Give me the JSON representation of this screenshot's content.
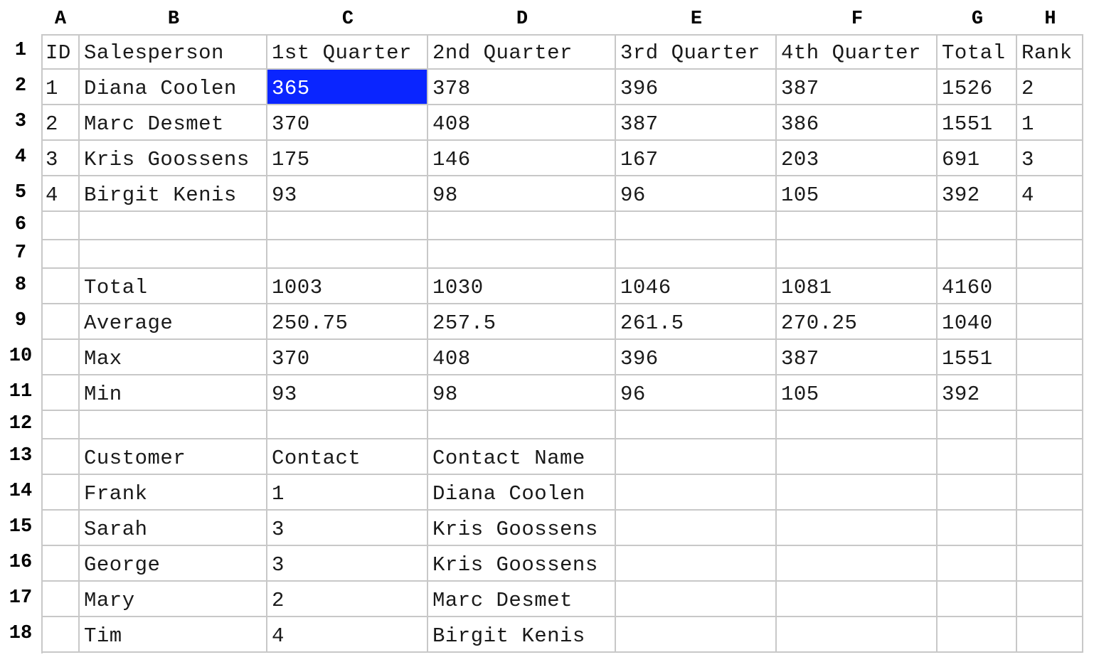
{
  "columns": [
    "A",
    "B",
    "C",
    "D",
    "E",
    "F",
    "G",
    "H"
  ],
  "rows": [
    "1",
    "2",
    "3",
    "4",
    "5",
    "6",
    "7",
    "8",
    "9",
    "10",
    "11",
    "12",
    "13",
    "14",
    "15",
    "16",
    "17",
    "18"
  ],
  "cells": {
    "1": [
      "ID",
      "Salesperson",
      "1st Quarter",
      "2nd Quarter",
      "3rd Quarter",
      "4th Quarter",
      "Total",
      "Rank"
    ],
    "2": [
      "1",
      "Diana Coolen",
      "365",
      "378",
      "396",
      "387",
      "1526",
      "2"
    ],
    "3": [
      "2",
      "Marc Desmet",
      "370",
      "408",
      "387",
      "386",
      "1551",
      "1"
    ],
    "4": [
      "3",
      "Kris Goossens",
      "175",
      "146",
      "167",
      "203",
      "691",
      "3"
    ],
    "5": [
      "4",
      "Birgit Kenis",
      "93",
      "98",
      "96",
      "105",
      "392",
      "4"
    ],
    "6": [
      "",
      "",
      "",
      "",
      "",
      "",
      "",
      ""
    ],
    "7": [
      "",
      "",
      "",
      "",
      "",
      "",
      "",
      ""
    ],
    "8": [
      "",
      "Total",
      "1003",
      "1030",
      "1046",
      "1081",
      "4160",
      ""
    ],
    "9": [
      "",
      "Average",
      "250.75",
      "257.5",
      "261.5",
      "270.25",
      "1040",
      ""
    ],
    "10": [
      "",
      "Max",
      "370",
      "408",
      "396",
      "387",
      "1551",
      ""
    ],
    "11": [
      "",
      "Min",
      "93",
      "98",
      "96",
      "105",
      "392",
      ""
    ],
    "12": [
      "",
      "",
      "",
      "",
      "",
      "",
      "",
      ""
    ],
    "13": [
      "",
      "Customer",
      "Contact",
      "Contact Name",
      "",
      "",
      "",
      ""
    ],
    "14": [
      "",
      "Frank",
      "1",
      "Diana Coolen",
      "",
      "",
      "",
      ""
    ],
    "15": [
      "",
      "Sarah",
      "3",
      "Kris Goossens",
      "",
      "",
      "",
      ""
    ],
    "16": [
      "",
      "George",
      "3",
      "Kris Goossens",
      "",
      "",
      "",
      ""
    ],
    "17": [
      "",
      "Mary",
      "2",
      "Marc Desmet",
      "",
      "",
      "",
      ""
    ],
    "18": [
      "",
      "Tim",
      "4",
      "Birgit Kenis",
      "",
      "",
      "",
      ""
    ]
  },
  "selected_cell": "C2",
  "colors": {
    "data_fill": "#ccffff",
    "highlight_fill": "#ffc0cb",
    "selection_fill": "#0a25ff",
    "gridline": "#c8c8c8"
  }
}
